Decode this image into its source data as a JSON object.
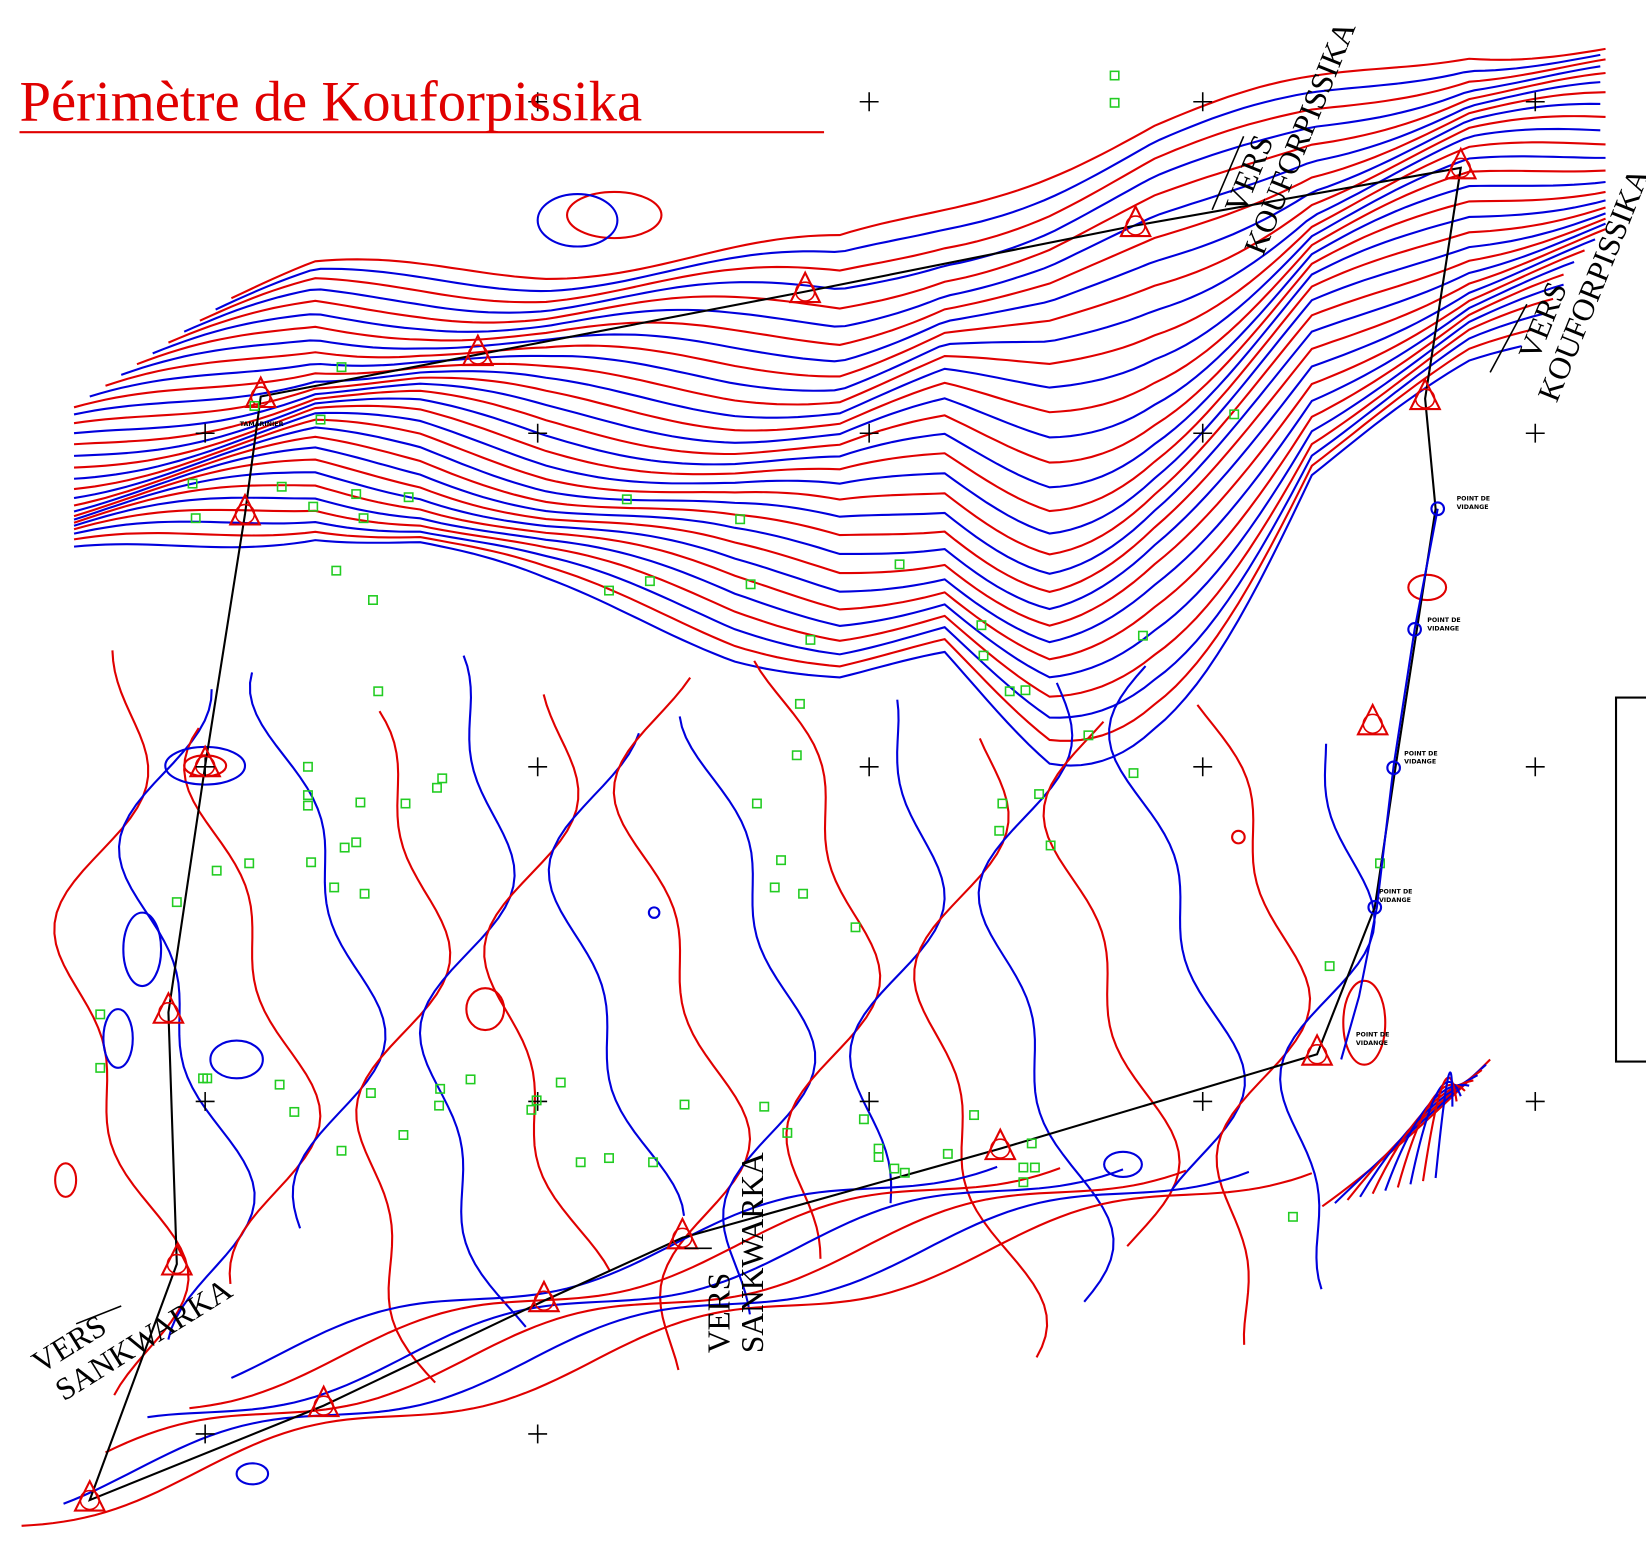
{
  "title": "Périmètre de Kouforpissika",
  "routes": [
    {
      "line1": "VERS",
      "line2": "KOUFORPISSIKA"
    },
    {
      "line1": "VERS",
      "line2": "KOUFORPISSIKA"
    },
    {
      "line1": "VERS",
      "line2": "SANKWARKA"
    },
    {
      "line1": "VERS",
      "line2": "SANKWARKA"
    }
  ],
  "landmark": "TAMARINIER",
  "drain_points": [
    {
      "line1": "POINT DE",
      "line2": "VIDANGE"
    },
    {
      "line1": "POINT DE",
      "line2": "VIDANGE"
    },
    {
      "line1": "POINT DE",
      "line2": "VIDANGE"
    },
    {
      "line1": "POINT DE",
      "line2": "VIDANGE"
    },
    {
      "line1": "POINT DE",
      "line2": "VIDANGE"
    }
  ]
}
